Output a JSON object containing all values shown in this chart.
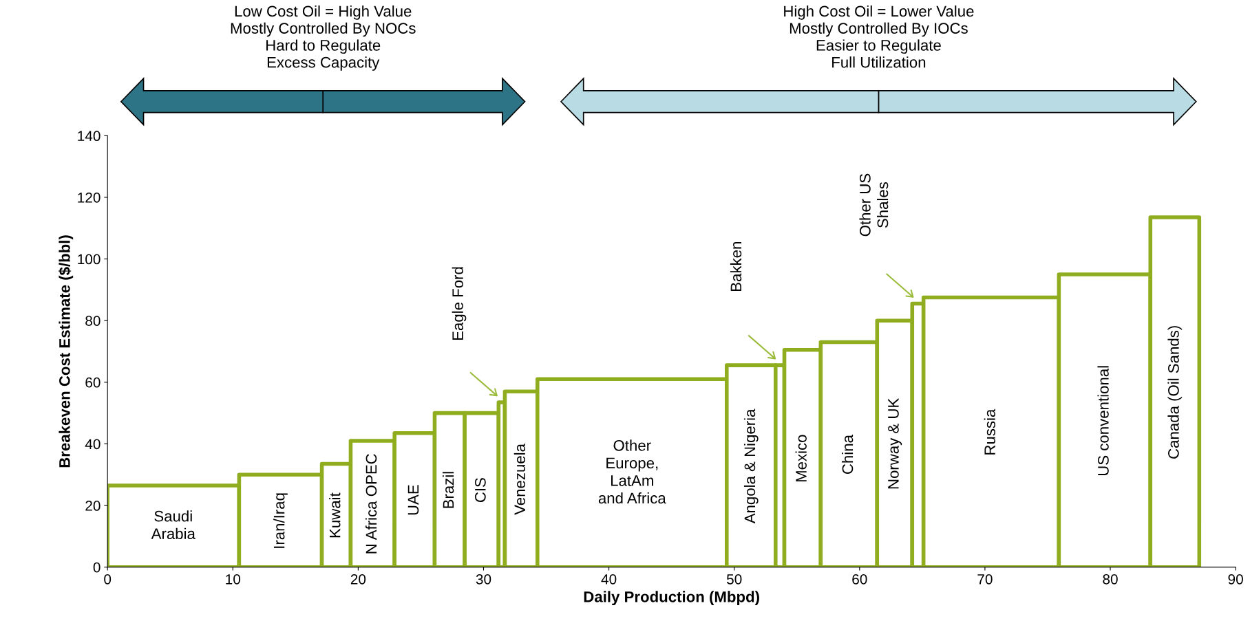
{
  "chart_data": {
    "type": "histogram",
    "xlabel": "Daily Production (Mbpd)",
    "ylabel": "Breakeven Cost Estimate ($/bbl)",
    "bins": [
      0,
      10.5,
      17.1,
      19.4,
      22.9,
      26.1,
      28.5,
      31.2,
      31.7,
      34.3,
      49.4,
      53.3,
      54.0,
      56.9,
      61.4,
      64.2,
      65.1,
      75.9,
      83.2,
      87.1
    ],
    "values": [
      26.5,
      30,
      33.5,
      41,
      43.5,
      50,
      50,
      53.5,
      57,
      61,
      65.5,
      65.5,
      70.5,
      73,
      80,
      85.5,
      87.5,
      95,
      113.5
    ],
    "color": "#8fad1e",
    "xlim": [
      0,
      90
    ],
    "xticks": [
      0,
      10,
      20,
      30,
      40,
      50,
      60,
      70,
      80,
      90
    ],
    "ylim": [
      0,
      140
    ],
    "yticks": [
      0,
      20,
      40,
      60,
      80,
      100,
      120,
      140
    ],
    "grid": false,
    "annotations": [
      "Low Cost Oil = High Value\nMostly Controlled By NOCs\nHard to Regulate\nExcess Capacity",
      "High Cost Oil = Lower Value\nMostly Controlled By IOCs\nEasier to Regulate\nFull Utilization",
      "Saudi\nArabia",
      "Iran/Iraq",
      "Kuwait",
      "N Africa OPEC",
      "UAE",
      "Brazil",
      "CIS",
      "Eagle Ford",
      "Venezuela",
      "Other\nEurope,\nLatAm\nand Africa",
      "Angola & Nigeria",
      "Bakken",
      "Mexico",
      "China",
      "Norway & UK",
      "Other US\nShales",
      "Russia",
      "US conventional",
      "Canada (Oil Sands)"
    ]
  }
}
